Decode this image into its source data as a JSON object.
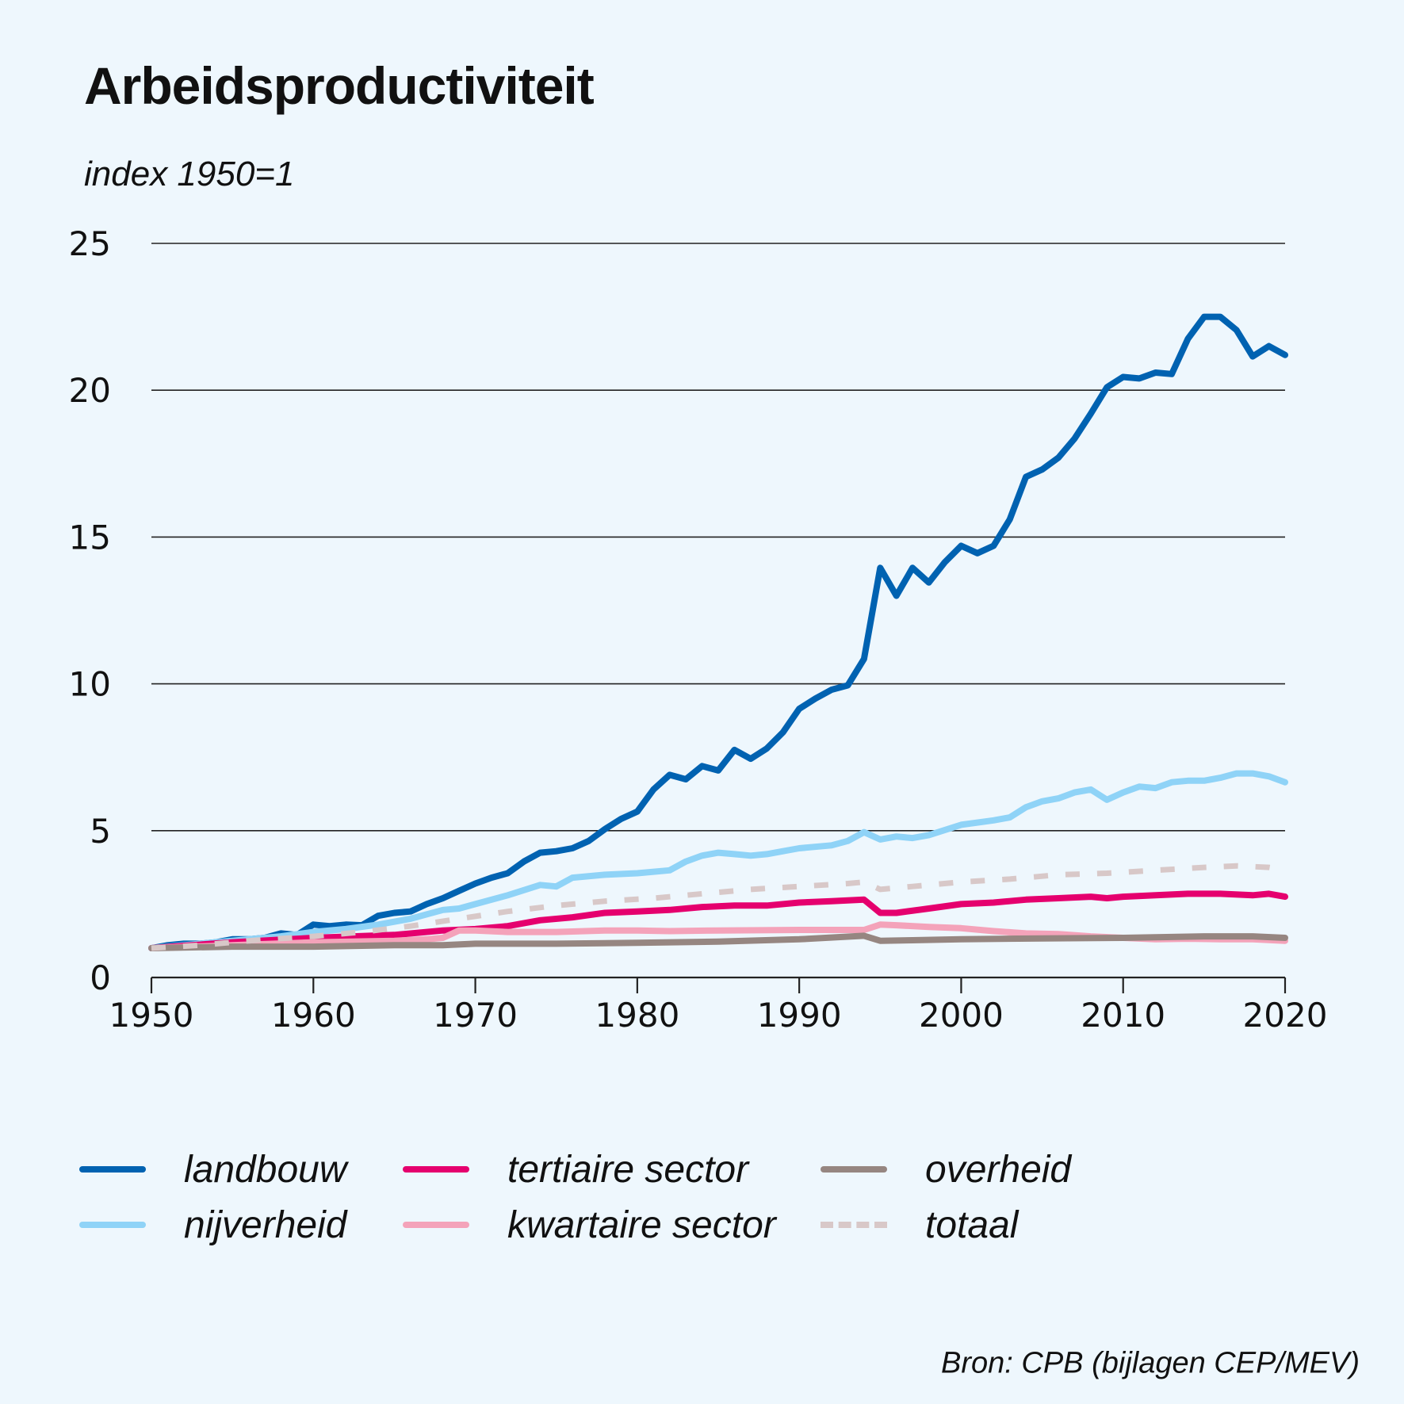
{
  "title": "Arbeidsproductiviteit",
  "source": "Bron: CPB (bijlagen CEP/MEV)",
  "colors": {
    "landbouw": "#0062b1",
    "nijverheid": "#8fd3f7",
    "tertiaire sector": "#e5006e",
    "kwartaire sector": "#f4a3ba",
    "overheid": "#968681",
    "totaal": "#d8c8c8",
    "grid": "#222222",
    "background": "#eef7fd"
  },
  "legend": [
    {
      "name": "landbouw",
      "style": "solid"
    },
    {
      "name": "nijverheid",
      "style": "solid"
    },
    {
      "name": "tertiaire sector",
      "style": "solid"
    },
    {
      "name": "kwartaire sector",
      "style": "solid"
    },
    {
      "name": "overheid",
      "style": "solid"
    },
    {
      "name": "totaal",
      "style": "dashed"
    }
  ],
  "chart_data": {
    "type": "line",
    "title": "Arbeidsproductiviteit",
    "ylabel": "index 1950=1",
    "xlabel": "",
    "xlim": [
      1950,
      2020
    ],
    "ylim": [
      0,
      25
    ],
    "xticks": [
      1950,
      1960,
      1970,
      1980,
      1990,
      2000,
      2010,
      2020
    ],
    "yticks": [
      0,
      5,
      10,
      15,
      20,
      25
    ],
    "grid": true,
    "series": [
      {
        "name": "landbouw",
        "points": [
          [
            1950,
            1.0
          ],
          [
            1951,
            1.1
          ],
          [
            1952,
            1.15
          ],
          [
            1953,
            1.15
          ],
          [
            1954,
            1.2
          ],
          [
            1955,
            1.3
          ],
          [
            1956,
            1.3
          ],
          [
            1957,
            1.35
          ],
          [
            1958,
            1.5
          ],
          [
            1959,
            1.45
          ],
          [
            1960,
            1.8
          ],
          [
            1961,
            1.75
          ],
          [
            1962,
            1.8
          ],
          [
            1963,
            1.78
          ],
          [
            1964,
            2.1
          ],
          [
            1965,
            2.2
          ],
          [
            1966,
            2.25
          ],
          [
            1967,
            2.5
          ],
          [
            1968,
            2.7
          ],
          [
            1969,
            2.95
          ],
          [
            1970,
            3.2
          ],
          [
            1971,
            3.4
          ],
          [
            1972,
            3.55
          ],
          [
            1973,
            3.95
          ],
          [
            1974,
            4.25
          ],
          [
            1975,
            4.3
          ],
          [
            1976,
            4.4
          ],
          [
            1977,
            4.65
          ],
          [
            1978,
            5.05
          ],
          [
            1979,
            5.4
          ],
          [
            1980,
            5.65
          ],
          [
            1981,
            6.4
          ],
          [
            1982,
            6.9
          ],
          [
            1983,
            6.75
          ],
          [
            1984,
            7.2
          ],
          [
            1985,
            7.05
          ],
          [
            1986,
            7.75
          ],
          [
            1987,
            7.45
          ],
          [
            1988,
            7.8
          ],
          [
            1989,
            8.35
          ],
          [
            1990,
            9.15
          ],
          [
            1991,
            9.5
          ],
          [
            1992,
            9.8
          ],
          [
            1993,
            9.95
          ],
          [
            1994,
            10.85
          ],
          [
            1995,
            13.95
          ],
          [
            1996,
            13.0
          ],
          [
            1997,
            13.95
          ],
          [
            1998,
            13.45
          ],
          [
            1999,
            14.15
          ],
          [
            2000,
            14.7
          ],
          [
            2001,
            14.45
          ],
          [
            2002,
            14.7
          ],
          [
            2003,
            15.6
          ],
          [
            2004,
            17.05
          ],
          [
            2005,
            17.3
          ],
          [
            2006,
            17.7
          ],
          [
            2007,
            18.35
          ],
          [
            2008,
            19.2
          ],
          [
            2009,
            20.1
          ],
          [
            2010,
            20.45
          ],
          [
            2011,
            20.4
          ],
          [
            2012,
            20.6
          ],
          [
            2013,
            20.55
          ],
          [
            2014,
            21.75
          ],
          [
            2015,
            22.5
          ],
          [
            2016,
            22.5
          ],
          [
            2017,
            22.05
          ],
          [
            2018,
            21.15
          ],
          [
            2019,
            21.5
          ],
          [
            2020,
            21.2
          ]
        ]
      },
      {
        "name": "nijverheid",
        "points": [
          [
            1950,
            1.0
          ],
          [
            1952,
            1.1
          ],
          [
            1954,
            1.2
          ],
          [
            1956,
            1.3
          ],
          [
            1958,
            1.4
          ],
          [
            1960,
            1.55
          ],
          [
            1962,
            1.65
          ],
          [
            1964,
            1.8
          ],
          [
            1966,
            2.0
          ],
          [
            1968,
            2.3
          ],
          [
            1969,
            2.35
          ],
          [
            1970,
            2.5
          ],
          [
            1972,
            2.8
          ],
          [
            1974,
            3.15
          ],
          [
            1975,
            3.1
          ],
          [
            1976,
            3.4
          ],
          [
            1978,
            3.5
          ],
          [
            1980,
            3.55
          ],
          [
            1982,
            3.65
          ],
          [
            1983,
            3.95
          ],
          [
            1984,
            4.15
          ],
          [
            1985,
            4.25
          ],
          [
            1986,
            4.2
          ],
          [
            1987,
            4.15
          ],
          [
            1988,
            4.2
          ],
          [
            1989,
            4.3
          ],
          [
            1990,
            4.4
          ],
          [
            1992,
            4.5
          ],
          [
            1993,
            4.65
          ],
          [
            1994,
            4.95
          ],
          [
            1995,
            4.7
          ],
          [
            1996,
            4.8
          ],
          [
            1997,
            4.75
          ],
          [
            1998,
            4.85
          ],
          [
            2000,
            5.2
          ],
          [
            2002,
            5.35
          ],
          [
            2003,
            5.45
          ],
          [
            2004,
            5.8
          ],
          [
            2005,
            6.0
          ],
          [
            2006,
            6.1
          ],
          [
            2007,
            6.3
          ],
          [
            2008,
            6.4
          ],
          [
            2009,
            6.05
          ],
          [
            2010,
            6.3
          ],
          [
            2011,
            6.5
          ],
          [
            2012,
            6.45
          ],
          [
            2013,
            6.65
          ],
          [
            2014,
            6.7
          ],
          [
            2015,
            6.7
          ],
          [
            2016,
            6.8
          ],
          [
            2017,
            6.95
          ],
          [
            2018,
            6.95
          ],
          [
            2019,
            6.85
          ],
          [
            2020,
            6.65
          ]
        ]
      },
      {
        "name": "tertiaire sector",
        "points": [
          [
            1950,
            1.0
          ],
          [
            1955,
            1.2
          ],
          [
            1960,
            1.35
          ],
          [
            1965,
            1.45
          ],
          [
            1968,
            1.6
          ],
          [
            1970,
            1.65
          ],
          [
            1972,
            1.75
          ],
          [
            1974,
            1.95
          ],
          [
            1976,
            2.05
          ],
          [
            1978,
            2.2
          ],
          [
            1980,
            2.25
          ],
          [
            1982,
            2.3
          ],
          [
            1984,
            2.4
          ],
          [
            1986,
            2.45
          ],
          [
            1988,
            2.45
          ],
          [
            1990,
            2.55
          ],
          [
            1992,
            2.6
          ],
          [
            1994,
            2.65
          ],
          [
            1995,
            2.2
          ],
          [
            1996,
            2.2
          ],
          [
            1998,
            2.35
          ],
          [
            2000,
            2.5
          ],
          [
            2002,
            2.55
          ],
          [
            2004,
            2.65
          ],
          [
            2006,
            2.7
          ],
          [
            2008,
            2.75
          ],
          [
            2009,
            2.7
          ],
          [
            2010,
            2.75
          ],
          [
            2012,
            2.8
          ],
          [
            2014,
            2.85
          ],
          [
            2016,
            2.85
          ],
          [
            2018,
            2.8
          ],
          [
            2019,
            2.85
          ],
          [
            2020,
            2.75
          ]
        ]
      },
      {
        "name": "kwartaire sector",
        "points": [
          [
            1950,
            1.0
          ],
          [
            1955,
            1.1
          ],
          [
            1960,
            1.2
          ],
          [
            1965,
            1.25
          ],
          [
            1967,
            1.3
          ],
          [
            1968,
            1.35
          ],
          [
            1969,
            1.6
          ],
          [
            1970,
            1.6
          ],
          [
            1972,
            1.55
          ],
          [
            1975,
            1.55
          ],
          [
            1978,
            1.6
          ],
          [
            1980,
            1.6
          ],
          [
            1982,
            1.58
          ],
          [
            1985,
            1.6
          ],
          [
            1990,
            1.62
          ],
          [
            1994,
            1.62
          ],
          [
            1995,
            1.8
          ],
          [
            1996,
            1.78
          ],
          [
            1998,
            1.72
          ],
          [
            2000,
            1.68
          ],
          [
            2002,
            1.58
          ],
          [
            2004,
            1.5
          ],
          [
            2006,
            1.48
          ],
          [
            2008,
            1.4
          ],
          [
            2010,
            1.35
          ],
          [
            2012,
            1.3
          ],
          [
            2014,
            1.32
          ],
          [
            2016,
            1.3
          ],
          [
            2018,
            1.3
          ],
          [
            2020,
            1.25
          ]
        ]
      },
      {
        "name": "overheid",
        "points": [
          [
            1950,
            1.0
          ],
          [
            1955,
            1.05
          ],
          [
            1960,
            1.05
          ],
          [
            1965,
            1.1
          ],
          [
            1968,
            1.1
          ],
          [
            1970,
            1.15
          ],
          [
            1972,
            1.15
          ],
          [
            1975,
            1.15
          ],
          [
            1980,
            1.18
          ],
          [
            1985,
            1.22
          ],
          [
            1990,
            1.3
          ],
          [
            1994,
            1.42
          ],
          [
            1995,
            1.25
          ],
          [
            1997,
            1.27
          ],
          [
            2000,
            1.3
          ],
          [
            2005,
            1.33
          ],
          [
            2010,
            1.35
          ],
          [
            2015,
            1.4
          ],
          [
            2018,
            1.4
          ],
          [
            2020,
            1.35
          ]
        ]
      },
      {
        "name": "totaal",
        "points": [
          [
            1950,
            1.0
          ],
          [
            1953,
            1.1
          ],
          [
            1956,
            1.25
          ],
          [
            1960,
            1.4
          ],
          [
            1963,
            1.55
          ],
          [
            1966,
            1.75
          ],
          [
            1969,
            2.0
          ],
          [
            1972,
            2.25
          ],
          [
            1975,
            2.45
          ],
          [
            1978,
            2.6
          ],
          [
            1981,
            2.7
          ],
          [
            1984,
            2.85
          ],
          [
            1987,
            3.0
          ],
          [
            1990,
            3.1
          ],
          [
            1993,
            3.2
          ],
          [
            1994,
            3.25
          ],
          [
            1995,
            3.0
          ],
          [
            1997,
            3.1
          ],
          [
            2000,
            3.25
          ],
          [
            2003,
            3.35
          ],
          [
            2006,
            3.5
          ],
          [
            2009,
            3.55
          ],
          [
            2012,
            3.65
          ],
          [
            2015,
            3.75
          ],
          [
            2017,
            3.8
          ],
          [
            2019,
            3.75
          ],
          [
            2020,
            3.65
          ]
        ]
      }
    ]
  }
}
